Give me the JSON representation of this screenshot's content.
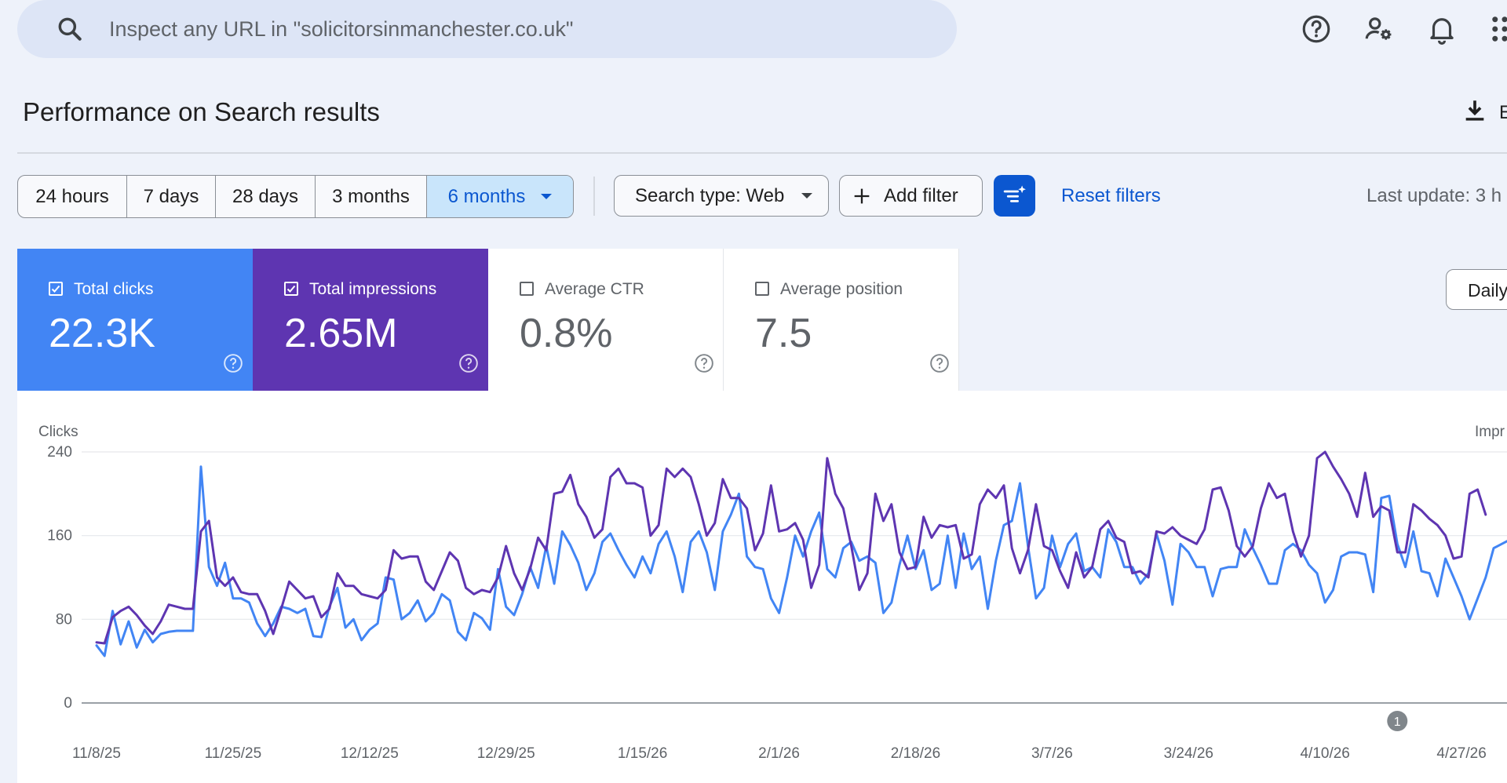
{
  "search": {
    "placeholder": "Inspect any URL in \"solicitorsinmanchester.co.uk\""
  },
  "top_icons": [
    "help-icon",
    "manage-users-icon",
    "notifications-icon",
    "apps-grid-icon"
  ],
  "header": {
    "title": "Performance on Search results",
    "export_label": "E"
  },
  "date_ranges": [
    {
      "label": "24 hours",
      "active": false
    },
    {
      "label": "7 days",
      "active": false
    },
    {
      "label": "28 days",
      "active": false
    },
    {
      "label": "3 months",
      "active": false
    },
    {
      "label": "6 months",
      "active": true
    }
  ],
  "filters": {
    "search_type": "Search type: Web",
    "add_filter": "Add filter",
    "reset": "Reset filters",
    "last_update": "Last update: 3 h"
  },
  "metrics": [
    {
      "label": "Total clicks",
      "value": "22.3K",
      "checked": true,
      "color": "#4285f4"
    },
    {
      "label": "Total impressions",
      "value": "2.65M",
      "checked": true,
      "color": "#5e35b1"
    },
    {
      "label": "Average CTR",
      "value": "0.8%",
      "checked": false
    },
    {
      "label": "Average position",
      "value": "7.5",
      "checked": false
    }
  ],
  "granularity": "Daily",
  "chart_data": {
    "type": "line",
    "left_axis_label": "Clicks",
    "right_axis_label": "Impr",
    "y_ticks": [
      0,
      80,
      160,
      240
    ],
    "ylim": [
      0,
      240
    ],
    "x_tick_labels": [
      "11/8/25",
      "11/25/25",
      "12/12/25",
      "12/29/25",
      "1/15/26",
      "2/1/26",
      "2/18/26",
      "3/7/26",
      "3/24/26",
      "4/10/26",
      "4/27/26"
    ],
    "annotation_label": "1",
    "annotation_day": 162,
    "grid": true,
    "series": [
      {
        "name": "Clicks",
        "color": "#4285f4",
        "values": [
          55,
          45,
          88,
          56,
          78,
          53,
          70,
          58,
          66,
          68,
          69,
          69,
          69,
          226,
          130,
          112,
          134,
          100,
          100,
          96,
          76,
          64,
          76,
          92,
          90,
          86,
          90,
          64,
          63,
          92,
          110,
          72,
          80,
          60,
          70,
          76,
          120,
          118,
          80,
          86,
          98,
          78,
          86,
          104,
          98,
          68,
          60,
          86,
          81,
          70,
          128,
          92,
          84,
          104,
          130,
          110,
          150,
          114,
          164,
          151,
          134,
          108,
          124,
          154,
          162,
          146,
          132,
          120,
          140,
          124,
          152,
          164,
          140,
          106,
          154,
          164,
          144,
          108,
          164,
          180,
          200,
          140,
          130,
          128,
          100,
          86,
          120,
          160,
          140,
          164,
          182,
          128,
          120,
          148,
          154,
          136,
          140,
          134,
          86,
          96,
          132,
          160,
          128,
          146,
          108,
          114,
          160,
          110,
          162,
          128,
          140,
          90,
          136,
          170,
          174,
          210,
          150,
          100,
          110,
          160,
          130,
          152,
          162,
          126,
          130,
          120,
          166,
          154,
          130,
          130,
          114,
          124,
          162,
          136,
          94,
          152,
          144,
          130,
          130,
          102,
          128,
          130,
          130,
          166,
          148,
          132,
          114,
          114,
          146,
          152,
          146,
          132,
          124,
          96,
          108,
          140,
          144,
          144,
          142,
          106,
          196,
          198,
          152,
          130,
          164,
          126,
          124,
          102,
          138,
          120,
          102,
          80,
          100,
          120,
          148,
          152,
          156
        ]
      },
      {
        "name": "Impressions",
        "color": "#5e35b1",
        "values": [
          58,
          57,
          82,
          88,
          92,
          84,
          74,
          66,
          78,
          94,
          92,
          90,
          90,
          164,
          174,
          120,
          112,
          120,
          106,
          104,
          104,
          88,
          66,
          90,
          116,
          108,
          100,
          102,
          82,
          90,
          124,
          112,
          112,
          104,
          102,
          100,
          108,
          146,
          138,
          140,
          140,
          116,
          108,
          126,
          144,
          136,
          110,
          104,
          108,
          106,
          120,
          150,
          124,
          108,
          128,
          158,
          146,
          200,
          202,
          218,
          190,
          178,
          158,
          166,
          216,
          224,
          210,
          210,
          206,
          160,
          170,
          224,
          216,
          224,
          216,
          190,
          160,
          172,
          214,
          196,
          196,
          186,
          146,
          162,
          208,
          164,
          166,
          172,
          156,
          110,
          132,
          234,
          200,
          186,
          150,
          108,
          124,
          200,
          174,
          190,
          144,
          128,
          130,
          178,
          158,
          170,
          168,
          170,
          138,
          142,
          190,
          204,
          196,
          208,
          148,
          124,
          146,
          190,
          150,
          146,
          126,
          110,
          144,
          120,
          130,
          166,
          174,
          158,
          154,
          124,
          126,
          120,
          164,
          162,
          168,
          160,
          156,
          152,
          166,
          204,
          206,
          184,
          150,
          140,
          150,
          186,
          210,
          196,
          200,
          164,
          140,
          160,
          234,
          240,
          226,
          214,
          200,
          178,
          220,
          178,
          188,
          184,
          144,
          144,
          190,
          184,
          176,
          170,
          160,
          138,
          140,
          200,
          204,
          180
        ]
      }
    ]
  }
}
